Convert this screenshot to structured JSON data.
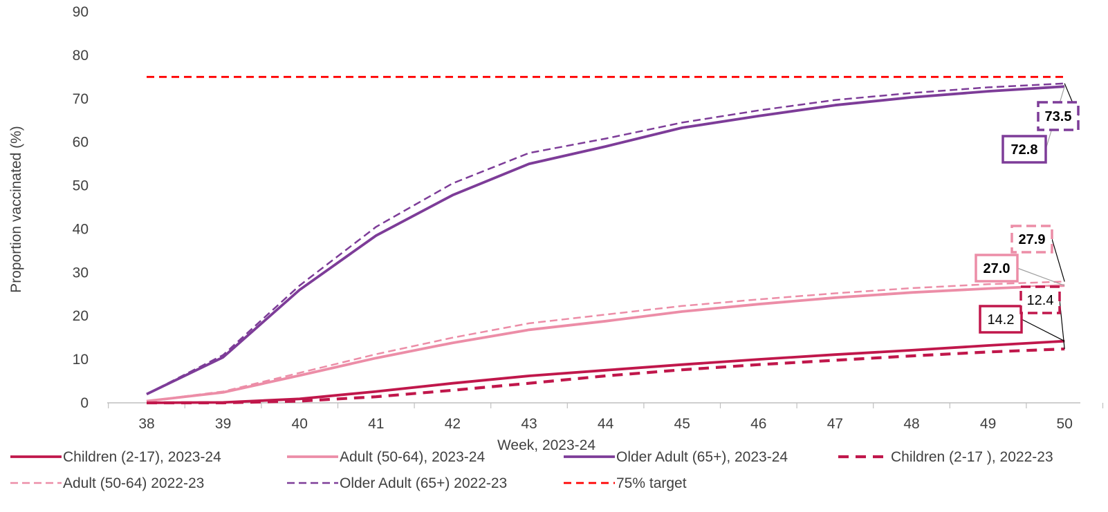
{
  "chart_data": {
    "type": "line",
    "title": "",
    "xlabel": "Week, 2023-24",
    "ylabel": "Proportion  vaccinated (%)",
    "x": [
      38,
      39,
      40,
      41,
      42,
      43,
      44,
      45,
      46,
      47,
      48,
      49,
      50
    ],
    "xlim": [
      38,
      50
    ],
    "ylim": [
      0,
      90
    ],
    "yticks": [
      0,
      10,
      20,
      30,
      40,
      50,
      60,
      70,
      80,
      90
    ],
    "grid": false,
    "legend_position": "bottom",
    "series": [
      {
        "name": "Children (2-17), 2023-24",
        "color": "#C0174B",
        "style": "solid",
        "weight": "bold",
        "values": [
          0.0,
          0.1,
          0.9,
          2.6,
          4.5,
          6.2,
          7.5,
          8.8,
          10.0,
          11.1,
          12.1,
          13.2,
          14.2
        ],
        "end_label": "14.2"
      },
      {
        "name": "Adult (50-64), 2023-24",
        "color": "#EC8DA7",
        "style": "solid",
        "weight": "bold",
        "values": [
          0.4,
          2.4,
          6.3,
          10.3,
          13.8,
          16.8,
          18.8,
          21.0,
          22.7,
          24.2,
          25.4,
          26.3,
          27.0
        ],
        "end_label": "27.0"
      },
      {
        "name": "Older Adult (65+), 2023-24",
        "color": "#7D3C98",
        "style": "solid",
        "weight": "bold",
        "values": [
          2.0,
          10.5,
          26.0,
          38.5,
          47.8,
          55.0,
          59.0,
          63.3,
          66.0,
          68.5,
          70.3,
          71.7,
          72.8
        ],
        "end_label": "72.8"
      },
      {
        "name": "Children (2-17 ), 2022-23",
        "color": "#C0174B",
        "style": "dashed",
        "weight": "bold",
        "values": [
          0.0,
          0.0,
          0.4,
          1.4,
          2.9,
          4.5,
          6.2,
          7.6,
          8.8,
          9.8,
          10.8,
          11.7,
          12.4
        ],
        "end_label": "12.4"
      },
      {
        "name": "Adult (50-64) 2022-23",
        "color": "#EC8DA7",
        "style": "dashed",
        "weight": "thin",
        "values": [
          0.4,
          2.6,
          6.9,
          11.2,
          15.0,
          18.3,
          20.3,
          22.3,
          23.8,
          25.2,
          26.4,
          27.3,
          27.9
        ],
        "end_label": "27.9"
      },
      {
        "name": "Older Adult (65+) 2022-23",
        "color": "#7D3C98",
        "style": "dashed",
        "weight": "thin",
        "values": [
          2.0,
          11.0,
          27.0,
          40.5,
          50.5,
          57.5,
          60.8,
          64.5,
          67.3,
          69.7,
          71.3,
          72.6,
          73.5
        ],
        "end_label": "73.5"
      },
      {
        "name": "75% target",
        "color": "#FF0000",
        "style": "dashed",
        "weight": "target",
        "values": [
          75,
          75,
          75,
          75,
          75,
          75,
          75,
          75,
          75,
          75,
          75,
          75,
          75
        ]
      }
    ]
  }
}
